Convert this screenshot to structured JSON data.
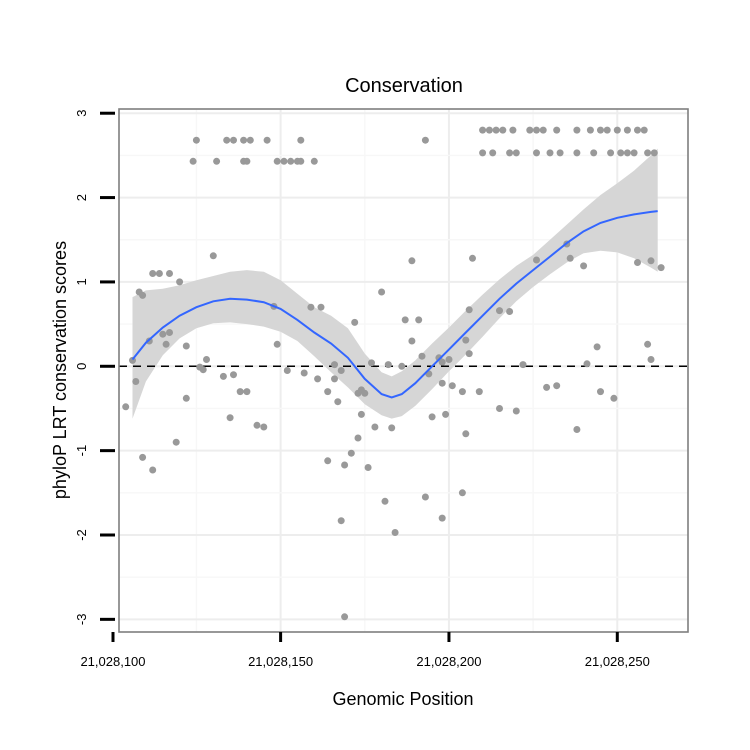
{
  "chart_data": {
    "type": "scatter",
    "title": "Conservation",
    "xlabel": "Genomic Position",
    "ylabel": "phyloP LRT conservation scores",
    "xlim": [
      21028102,
      21028271
    ],
    "ylim": [
      -3.15,
      3.05
    ],
    "x_ticks": [
      {
        "value": 21028100,
        "label": "21,028,100"
      },
      {
        "value": 21028150,
        "label": "21,028,150"
      },
      {
        "value": 21028200,
        "label": "21,028,200"
      },
      {
        "value": 21028250,
        "label": "21,028,250"
      }
    ],
    "y_ticks": [
      {
        "value": -3,
        "label": "-3"
      },
      {
        "value": -2,
        "label": "-2"
      },
      {
        "value": -1,
        "label": "-1"
      },
      {
        "value": 0,
        "label": "0"
      },
      {
        "value": 1,
        "label": "1"
      },
      {
        "value": 2,
        "label": "2"
      },
      {
        "value": 3,
        "label": "3"
      }
    ],
    "reference_line": {
      "y": 0,
      "style": "dashed"
    },
    "grid": true,
    "colors": {
      "points": "#999999",
      "smooth": "#3366ff",
      "band": "#d6d6d6",
      "panel_border": "#7f7f7f"
    },
    "points": [
      [
        21028125,
        2.68
      ],
      [
        21028134,
        2.68
      ],
      [
        21028136,
        2.68
      ],
      [
        21028139,
        2.68
      ],
      [
        21028141,
        2.68
      ],
      [
        21028146,
        2.68
      ],
      [
        21028156,
        2.68
      ],
      [
        21028193,
        2.68
      ],
      [
        21028124,
        2.43
      ],
      [
        21028131,
        2.43
      ],
      [
        21028139,
        2.43
      ],
      [
        21028140,
        2.43
      ],
      [
        21028149,
        2.43
      ],
      [
        21028151,
        2.43
      ],
      [
        21028153,
        2.43
      ],
      [
        21028155,
        2.43
      ],
      [
        21028156,
        2.43
      ],
      [
        21028160,
        2.43
      ],
      [
        21028210,
        2.8
      ],
      [
        21028212,
        2.8
      ],
      [
        21028214,
        2.8
      ],
      [
        21028216,
        2.8
      ],
      [
        21028219,
        2.8
      ],
      [
        21028224,
        2.8
      ],
      [
        21028226,
        2.8
      ],
      [
        21028228,
        2.8
      ],
      [
        21028232,
        2.8
      ],
      [
        21028238,
        2.8
      ],
      [
        21028242,
        2.8
      ],
      [
        21028245,
        2.8
      ],
      [
        21028247,
        2.8
      ],
      [
        21028250,
        2.8
      ],
      [
        21028253,
        2.8
      ],
      [
        21028256,
        2.8
      ],
      [
        21028258,
        2.8
      ],
      [
        21028210,
        2.53
      ],
      [
        21028213,
        2.53
      ],
      [
        21028218,
        2.53
      ],
      [
        21028220,
        2.53
      ],
      [
        21028226,
        2.53
      ],
      [
        21028230,
        2.53
      ],
      [
        21028233,
        2.53
      ],
      [
        21028238,
        2.53
      ],
      [
        21028243,
        2.53
      ],
      [
        21028248,
        2.53
      ],
      [
        21028251,
        2.53
      ],
      [
        21028253,
        2.53
      ],
      [
        21028255,
        2.53
      ],
      [
        21028259,
        2.53
      ],
      [
        21028261,
        2.53
      ],
      [
        21028130,
        1.31
      ],
      [
        21028189,
        1.25
      ],
      [
        21028207,
        1.28
      ],
      [
        21028226,
        1.26
      ],
      [
        21028235,
        1.45
      ],
      [
        21028236,
        1.28
      ],
      [
        21028240,
        1.19
      ],
      [
        21028256,
        1.23
      ],
      [
        21028260,
        1.25
      ],
      [
        21028263,
        1.17
      ],
      [
        21028112,
        1.1
      ],
      [
        21028114,
        1.1
      ],
      [
        21028117,
        1.1
      ],
      [
        21028120,
        1.0
      ],
      [
        21028108,
        0.88
      ],
      [
        21028109,
        0.84
      ],
      [
        21028180,
        0.88
      ],
      [
        21028148,
        0.71
      ],
      [
        21028159,
        0.7
      ],
      [
        21028162,
        0.7
      ],
      [
        21028206,
        0.67
      ],
      [
        21028215,
        0.66
      ],
      [
        21028218,
        0.65
      ],
      [
        21028187,
        0.55
      ],
      [
        21028191,
        0.55
      ],
      [
        21028172,
        0.52
      ],
      [
        21028115,
        0.38
      ],
      [
        21028117,
        0.4
      ],
      [
        21028116,
        0.26
      ],
      [
        21028111,
        0.3
      ],
      [
        21028189,
        0.3
      ],
      [
        21028122,
        0.24
      ],
      [
        21028149,
        0.26
      ],
      [
        21028205,
        0.31
      ],
      [
        21028206,
        0.15
      ],
      [
        21028244,
        0.23
      ],
      [
        21028259,
        0.26
      ],
      [
        21028106,
        0.07
      ],
      [
        21028128,
        0.08
      ],
      [
        21028192,
        0.12
      ],
      [
        21028197,
        0.1
      ],
      [
        21028200,
        0.08
      ],
      [
        21028177,
        0.04
      ],
      [
        21028182,
        0.02
      ],
      [
        21028198,
        0.05
      ],
      [
        21028186,
        0.0
      ],
      [
        21028222,
        0.02
      ],
      [
        21028241,
        0.03
      ],
      [
        21028260,
        0.08
      ],
      [
        21028104,
        -0.48
      ],
      [
        21028126,
        -0.01
      ],
      [
        21028127,
        -0.04
      ],
      [
        21028133,
        -0.12
      ],
      [
        21028136,
        -0.1
      ],
      [
        21028152,
        -0.05
      ],
      [
        21028157,
        -0.08
      ],
      [
        21028166,
        0.02
      ],
      [
        21028168,
        -0.05
      ],
      [
        21028107,
        -0.18
      ],
      [
        21028161,
        -0.15
      ],
      [
        21028166,
        -0.15
      ],
      [
        21028194,
        -0.09
      ],
      [
        21028173,
        -0.32
      ],
      [
        21028174,
        -0.28
      ],
      [
        21028175,
        -0.32
      ],
      [
        21028164,
        -0.3
      ],
      [
        21028140,
        -0.3
      ],
      [
        21028138,
        -0.3
      ],
      [
        21028167,
        -0.42
      ],
      [
        21028122,
        -0.38
      ],
      [
        21028198,
        -0.2
      ],
      [
        21028201,
        -0.23
      ],
      [
        21028204,
        -0.3
      ],
      [
        21028209,
        -0.3
      ],
      [
        21028229,
        -0.25
      ],
      [
        21028232,
        -0.23
      ],
      [
        21028245,
        -0.3
      ],
      [
        21028249,
        -0.38
      ],
      [
        21028135,
        -0.61
      ],
      [
        21028174,
        -0.57
      ],
      [
        21028215,
        -0.5
      ],
      [
        21028220,
        -0.53
      ],
      [
        21028199,
        -0.57
      ],
      [
        21028195,
        -0.6
      ],
      [
        21028178,
        -0.72
      ],
      [
        21028183,
        -0.73
      ],
      [
        21028143,
        -0.7
      ],
      [
        21028145,
        -0.72
      ],
      [
        21028238,
        -0.75
      ],
      [
        21028119,
        -0.9
      ],
      [
        21028205,
        -0.8
      ],
      [
        21028173,
        -0.85
      ],
      [
        21028171,
        -1.03
      ],
      [
        21028109,
        -1.08
      ],
      [
        21028112,
        -1.23
      ],
      [
        21028164,
        -1.12
      ],
      [
        21028169,
        -1.17
      ],
      [
        21028176,
        -1.2
      ],
      [
        21028193,
        -1.55
      ],
      [
        21028181,
        -1.6
      ],
      [
        21028204,
        -1.5
      ],
      [
        21028198,
        -1.8
      ],
      [
        21028168,
        -1.83
      ],
      [
        21028184,
        -1.97
      ],
      [
        21028169,
        -2.97
      ]
    ],
    "smooth_curve": {
      "x": [
        21028106,
        21028110,
        21028115,
        21028120,
        21028125,
        21028130,
        21028135,
        21028140,
        21028145,
        21028150,
        21028155,
        21028160,
        21028165,
        21028170,
        21028175,
        21028180,
        21028183,
        21028186,
        21028190,
        21028195,
        21028200,
        21028205,
        21028210,
        21028215,
        21028220,
        21028225,
        21028230,
        21028235,
        21028240,
        21028245,
        21028250,
        21028255,
        21028260,
        21028262
      ],
      "y": [
        0.08,
        0.28,
        0.46,
        0.6,
        0.7,
        0.77,
        0.8,
        0.79,
        0.76,
        0.68,
        0.55,
        0.4,
        0.27,
        0.1,
        -0.15,
        -0.33,
        -0.37,
        -0.33,
        -0.2,
        0.0,
        0.2,
        0.4,
        0.6,
        0.8,
        0.98,
        1.14,
        1.3,
        1.46,
        1.6,
        1.7,
        1.76,
        1.8,
        1.83,
        1.84
      ],
      "lower": [
        -0.62,
        -0.18,
        0.13,
        0.33,
        0.45,
        0.51,
        0.52,
        0.5,
        0.47,
        0.41,
        0.3,
        0.12,
        -0.07,
        -0.25,
        -0.45,
        -0.58,
        -0.62,
        -0.59,
        -0.47,
        -0.27,
        -0.06,
        0.14,
        0.35,
        0.57,
        0.77,
        0.94,
        1.09,
        1.23,
        1.34,
        1.37,
        1.35,
        1.28,
        1.17,
        1.12
      ],
      "upper": [
        0.82,
        0.9,
        0.92,
        0.96,
        1.02,
        1.07,
        1.12,
        1.14,
        1.12,
        1.02,
        0.86,
        0.7,
        0.6,
        0.45,
        0.15,
        -0.07,
        -0.12,
        -0.06,
        0.07,
        0.27,
        0.46,
        0.66,
        0.85,
        1.03,
        1.19,
        1.32,
        1.5,
        1.68,
        1.86,
        2.03,
        2.17,
        2.32,
        2.5,
        2.58
      ]
    }
  }
}
